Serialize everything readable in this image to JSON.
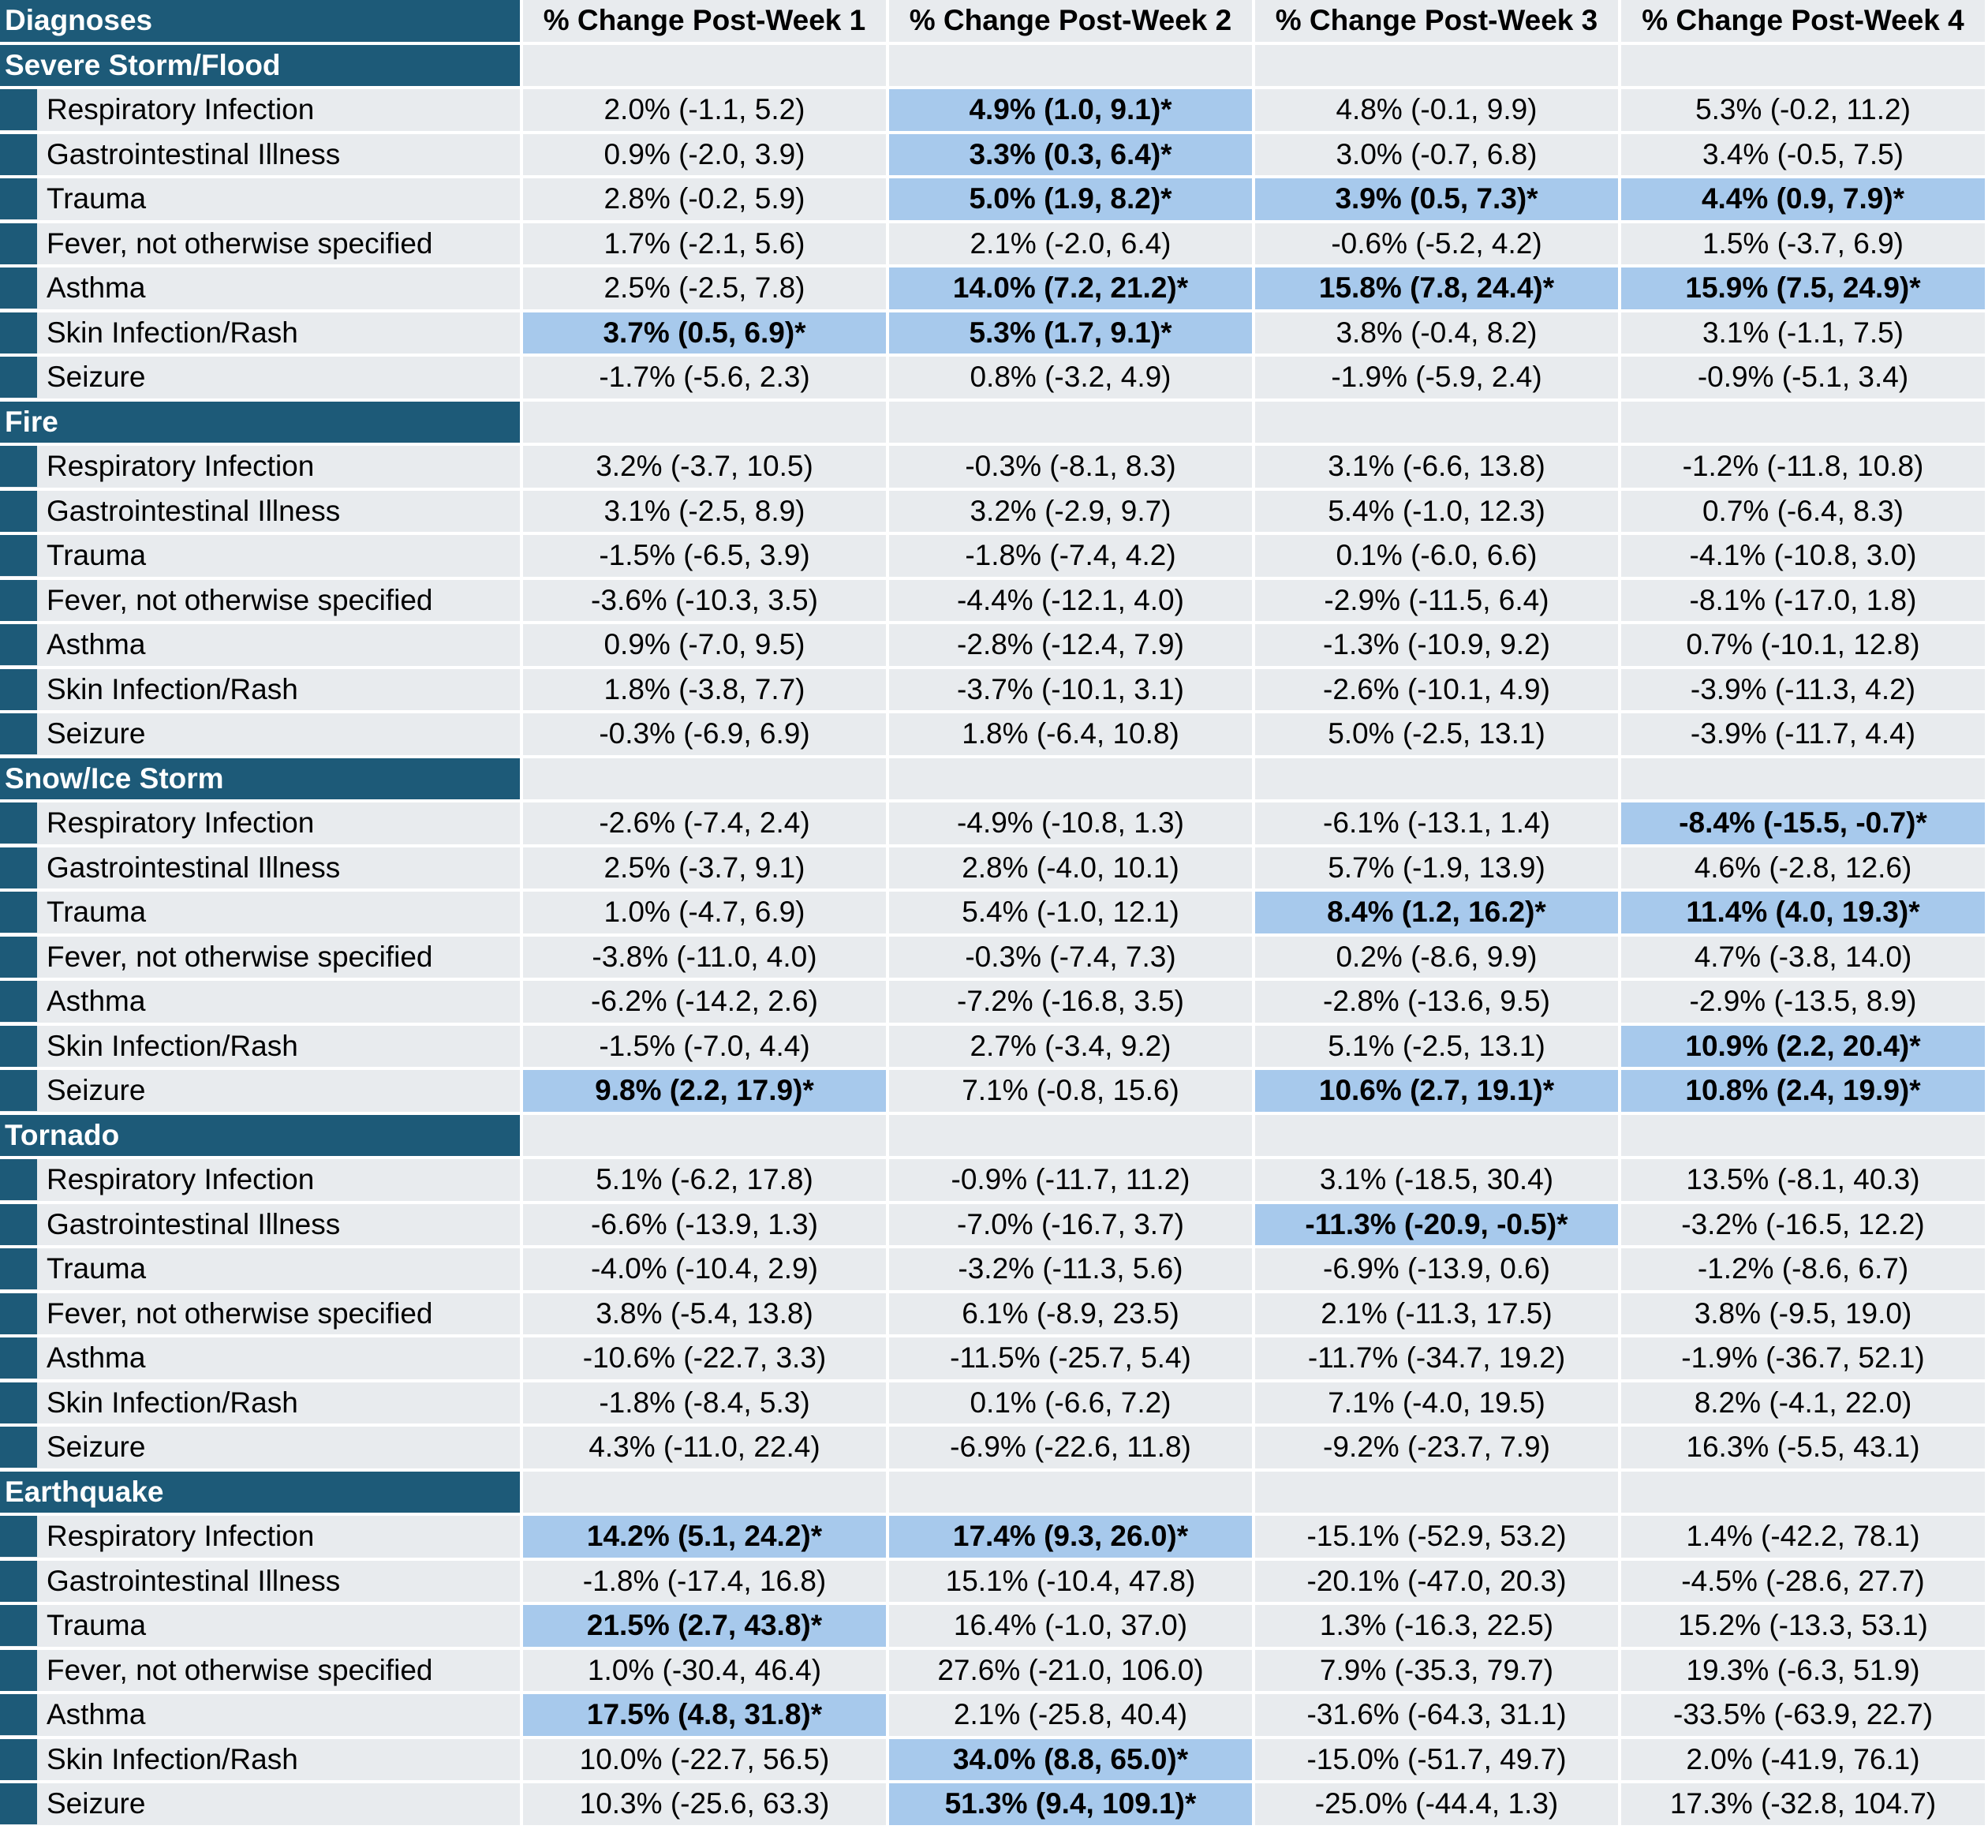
{
  "header": {
    "diagnoses": "Diagnoses",
    "weeks": [
      "% Change Post-Week 1",
      "% Change Post-Week 2",
      "% Change Post-Week 3",
      "% Change Post-Week 4"
    ]
  },
  "colors": {
    "category_bg": "#1d5a78",
    "cell_bg": "#e8ebee",
    "significant_bg": "#a7c9ec"
  },
  "categories": [
    {
      "name": "Severe Storm/Flood",
      "rows": [
        {
          "label": "Respiratory Infection",
          "cells": [
            {
              "text": "2.0% (-1.1, 5.2)",
              "sig": false
            },
            {
              "text": "4.9% (1.0, 9.1)*",
              "sig": true
            },
            {
              "text": "4.8% (-0.1, 9.9)",
              "sig": false
            },
            {
              "text": "5.3% (-0.2, 11.2)",
              "sig": false
            }
          ]
        },
        {
          "label": "Gastrointestinal Illness",
          "cells": [
            {
              "text": "0.9% (-2.0, 3.9)",
              "sig": false
            },
            {
              "text": "3.3% (0.3, 6.4)*",
              "sig": true
            },
            {
              "text": "3.0% (-0.7, 6.8)",
              "sig": false
            },
            {
              "text": "3.4% (-0.5, 7.5)",
              "sig": false
            }
          ]
        },
        {
          "label": "Trauma",
          "cells": [
            {
              "text": "2.8% (-0.2, 5.9)",
              "sig": false
            },
            {
              "text": "5.0% (1.9, 8.2)*",
              "sig": true
            },
            {
              "text": "3.9% (0.5, 7.3)*",
              "sig": true
            },
            {
              "text": "4.4% (0.9, 7.9)*",
              "sig": true
            }
          ]
        },
        {
          "label": "Fever, not otherwise specified",
          "cells": [
            {
              "text": "1.7% (-2.1, 5.6)",
              "sig": false
            },
            {
              "text": "2.1% (-2.0, 6.4)",
              "sig": false
            },
            {
              "text": "-0.6% (-5.2, 4.2)",
              "sig": false
            },
            {
              "text": "1.5% (-3.7, 6.9)",
              "sig": false
            }
          ]
        },
        {
          "label": "Asthma",
          "cells": [
            {
              "text": "2.5% (-2.5, 7.8)",
              "sig": false
            },
            {
              "text": "14.0% (7.2, 21.2)*",
              "sig": true
            },
            {
              "text": "15.8% (7.8, 24.4)*",
              "sig": true
            },
            {
              "text": "15.9% (7.5, 24.9)*",
              "sig": true
            }
          ]
        },
        {
          "label": "Skin Infection/Rash",
          "cells": [
            {
              "text": "3.7% (0.5, 6.9)*",
              "sig": true
            },
            {
              "text": "5.3% (1.7, 9.1)*",
              "sig": true
            },
            {
              "text": "3.8% (-0.4, 8.2)",
              "sig": false
            },
            {
              "text": "3.1% (-1.1, 7.5)",
              "sig": false
            }
          ]
        },
        {
          "label": "Seizure",
          "cells": [
            {
              "text": "-1.7% (-5.6, 2.3)",
              "sig": false
            },
            {
              "text": "0.8% (-3.2, 4.9)",
              "sig": false
            },
            {
              "text": "-1.9% (-5.9, 2.4)",
              "sig": false
            },
            {
              "text": "-0.9% (-5.1, 3.4)",
              "sig": false
            }
          ]
        }
      ]
    },
    {
      "name": "Fire",
      "rows": [
        {
          "label": "Respiratory Infection",
          "cells": [
            {
              "text": "3.2% (-3.7, 10.5)",
              "sig": false
            },
            {
              "text": "-0.3% (-8.1, 8.3)",
              "sig": false
            },
            {
              "text": "3.1% (-6.6, 13.8)",
              "sig": false
            },
            {
              "text": "-1.2% (-11.8, 10.8)",
              "sig": false
            }
          ]
        },
        {
          "label": "Gastrointestinal Illness",
          "cells": [
            {
              "text": "3.1% (-2.5, 8.9)",
              "sig": false
            },
            {
              "text": "3.2% (-2.9, 9.7)",
              "sig": false
            },
            {
              "text": "5.4% (-1.0, 12.3)",
              "sig": false
            },
            {
              "text": "0.7% (-6.4, 8.3)",
              "sig": false
            }
          ]
        },
        {
          "label": "Trauma",
          "cells": [
            {
              "text": "-1.5% (-6.5, 3.9)",
              "sig": false
            },
            {
              "text": "-1.8% (-7.4, 4.2)",
              "sig": false
            },
            {
              "text": "0.1% (-6.0, 6.6)",
              "sig": false
            },
            {
              "text": "-4.1% (-10.8, 3.0)",
              "sig": false
            }
          ]
        },
        {
          "label": "Fever, not otherwise specified",
          "cells": [
            {
              "text": "-3.6% (-10.3, 3.5)",
              "sig": false
            },
            {
              "text": "-4.4% (-12.1, 4.0)",
              "sig": false
            },
            {
              "text": "-2.9% (-11.5, 6.4)",
              "sig": false
            },
            {
              "text": "-8.1% (-17.0, 1.8)",
              "sig": false
            }
          ]
        },
        {
          "label": "Asthma",
          "cells": [
            {
              "text": "0.9% (-7.0, 9.5)",
              "sig": false
            },
            {
              "text": "-2.8% (-12.4, 7.9)",
              "sig": false
            },
            {
              "text": "-1.3% (-10.9, 9.2)",
              "sig": false
            },
            {
              "text": "0.7% (-10.1, 12.8)",
              "sig": false
            }
          ]
        },
        {
          "label": "Skin Infection/Rash",
          "cells": [
            {
              "text": "1.8% (-3.8, 7.7)",
              "sig": false
            },
            {
              "text": "-3.7% (-10.1, 3.1)",
              "sig": false
            },
            {
              "text": "-2.6% (-10.1, 4.9)",
              "sig": false
            },
            {
              "text": "-3.9% (-11.3, 4.2)",
              "sig": false
            }
          ]
        },
        {
          "label": "Seizure",
          "cells": [
            {
              "text": "-0.3% (-6.9, 6.9)",
              "sig": false
            },
            {
              "text": "1.8% (-6.4, 10.8)",
              "sig": false
            },
            {
              "text": "5.0% (-2.5, 13.1)",
              "sig": false
            },
            {
              "text": "-3.9% (-11.7, 4.4)",
              "sig": false
            }
          ]
        }
      ]
    },
    {
      "name": "Snow/Ice Storm",
      "rows": [
        {
          "label": "Respiratory Infection",
          "cells": [
            {
              "text": "-2.6% (-7.4, 2.4)",
              "sig": false
            },
            {
              "text": "-4.9% (-10.8, 1.3)",
              "sig": false
            },
            {
              "text": "-6.1% (-13.1, 1.4)",
              "sig": false
            },
            {
              "text": "-8.4% (-15.5, -0.7)*",
              "sig": true
            }
          ]
        },
        {
          "label": "Gastrointestinal Illness",
          "cells": [
            {
              "text": "2.5% (-3.7, 9.1)",
              "sig": false
            },
            {
              "text": "2.8% (-4.0, 10.1)",
              "sig": false
            },
            {
              "text": "5.7% (-1.9, 13.9)",
              "sig": false
            },
            {
              "text": "4.6% (-2.8, 12.6)",
              "sig": false
            }
          ]
        },
        {
          "label": "Trauma",
          "cells": [
            {
              "text": "1.0% (-4.7, 6.9)",
              "sig": false
            },
            {
              "text": "5.4% (-1.0, 12.1)",
              "sig": false
            },
            {
              "text": "8.4% (1.2, 16.2)*",
              "sig": true
            },
            {
              "text": "11.4% (4.0, 19.3)*",
              "sig": true
            }
          ]
        },
        {
          "label": "Fever, not otherwise specified",
          "cells": [
            {
              "text": "-3.8% (-11.0, 4.0)",
              "sig": false
            },
            {
              "text": "-0.3% (-7.4, 7.3)",
              "sig": false
            },
            {
              "text": "0.2% (-8.6, 9.9)",
              "sig": false
            },
            {
              "text": "4.7% (-3.8, 14.0)",
              "sig": false
            }
          ]
        },
        {
          "label": "Asthma",
          "cells": [
            {
              "text": "-6.2% (-14.2, 2.6)",
              "sig": false
            },
            {
              "text": "-7.2% (-16.8, 3.5)",
              "sig": false
            },
            {
              "text": "-2.8% (-13.6, 9.5)",
              "sig": false
            },
            {
              "text": "-2.9% (-13.5, 8.9)",
              "sig": false
            }
          ]
        },
        {
          "label": "Skin Infection/Rash",
          "cells": [
            {
              "text": "-1.5% (-7.0, 4.4)",
              "sig": false
            },
            {
              "text": "2.7% (-3.4, 9.2)",
              "sig": false
            },
            {
              "text": "5.1% (-2.5, 13.1)",
              "sig": false
            },
            {
              "text": "10.9% (2.2, 20.4)*",
              "sig": true
            }
          ]
        },
        {
          "label": "Seizure",
          "cells": [
            {
              "text": "9.8% (2.2, 17.9)*",
              "sig": true
            },
            {
              "text": "7.1% (-0.8, 15.6)",
              "sig": false
            },
            {
              "text": "10.6% (2.7, 19.1)*",
              "sig": true
            },
            {
              "text": "10.8% (2.4, 19.9)*",
              "sig": true
            }
          ]
        }
      ]
    },
    {
      "name": "Tornado",
      "rows": [
        {
          "label": "Respiratory Infection",
          "cells": [
            {
              "text": "5.1% (-6.2, 17.8)",
              "sig": false
            },
            {
              "text": "-0.9% (-11.7, 11.2)",
              "sig": false
            },
            {
              "text": "3.1% (-18.5, 30.4)",
              "sig": false
            },
            {
              "text": "13.5% (-8.1, 40.3)",
              "sig": false
            }
          ]
        },
        {
          "label": "Gastrointestinal Illness",
          "cells": [
            {
              "text": "-6.6% (-13.9, 1.3)",
              "sig": false
            },
            {
              "text": "-7.0% (-16.7, 3.7)",
              "sig": false
            },
            {
              "text": "-11.3% (-20.9, -0.5)*",
              "sig": true
            },
            {
              "text": "-3.2% (-16.5, 12.2)",
              "sig": false
            }
          ]
        },
        {
          "label": "Trauma",
          "cells": [
            {
              "text": "-4.0% (-10.4, 2.9)",
              "sig": false
            },
            {
              "text": "-3.2% (-11.3, 5.6)",
              "sig": false
            },
            {
              "text": "-6.9% (-13.9, 0.6)",
              "sig": false
            },
            {
              "text": "-1.2% (-8.6, 6.7)",
              "sig": false
            }
          ]
        },
        {
          "label": "Fever, not otherwise specified",
          "cells": [
            {
              "text": "3.8% (-5.4, 13.8)",
              "sig": false
            },
            {
              "text": "6.1% (-8.9, 23.5)",
              "sig": false
            },
            {
              "text": "2.1% (-11.3, 17.5)",
              "sig": false
            },
            {
              "text": "3.8% (-9.5, 19.0)",
              "sig": false
            }
          ]
        },
        {
          "label": "Asthma",
          "cells": [
            {
              "text": "-10.6% (-22.7, 3.3)",
              "sig": false
            },
            {
              "text": "-11.5% (-25.7, 5.4)",
              "sig": false
            },
            {
              "text": "-11.7% (-34.7, 19.2)",
              "sig": false
            },
            {
              "text": "-1.9% (-36.7, 52.1)",
              "sig": false
            }
          ]
        },
        {
          "label": "Skin Infection/Rash",
          "cells": [
            {
              "text": "-1.8% (-8.4, 5.3)",
              "sig": false
            },
            {
              "text": "0.1% (-6.6, 7.2)",
              "sig": false
            },
            {
              "text": "7.1% (-4.0, 19.5)",
              "sig": false
            },
            {
              "text": "8.2% (-4.1, 22.0)",
              "sig": false
            }
          ]
        },
        {
          "label": "Seizure",
          "cells": [
            {
              "text": "4.3% (-11.0, 22.4)",
              "sig": false
            },
            {
              "text": "-6.9% (-22.6, 11.8)",
              "sig": false
            },
            {
              "text": "-9.2% (-23.7, 7.9)",
              "sig": false
            },
            {
              "text": "16.3% (-5.5, 43.1)",
              "sig": false
            }
          ]
        }
      ]
    },
    {
      "name": "Earthquake",
      "rows": [
        {
          "label": "Respiratory Infection",
          "cells": [
            {
              "text": "14.2% (5.1, 24.2)*",
              "sig": true
            },
            {
              "text": "17.4% (9.3, 26.0)*",
              "sig": true
            },
            {
              "text": "-15.1% (-52.9, 53.2)",
              "sig": false
            },
            {
              "text": "1.4% (-42.2, 78.1)",
              "sig": false
            }
          ]
        },
        {
          "label": "Gastrointestinal Illness",
          "cells": [
            {
              "text": "-1.8% (-17.4, 16.8)",
              "sig": false
            },
            {
              "text": "15.1% (-10.4, 47.8)",
              "sig": false
            },
            {
              "text": "-20.1% (-47.0, 20.3)",
              "sig": false
            },
            {
              "text": "-4.5% (-28.6, 27.7)",
              "sig": false
            }
          ]
        },
        {
          "label": "Trauma",
          "cells": [
            {
              "text": "21.5% (2.7, 43.8)*",
              "sig": true
            },
            {
              "text": "16.4% (-1.0, 37.0)",
              "sig": false
            },
            {
              "text": "1.3% (-16.3, 22.5)",
              "sig": false
            },
            {
              "text": "15.2% (-13.3, 53.1)",
              "sig": false
            }
          ]
        },
        {
          "label": "Fever, not otherwise specified",
          "cells": [
            {
              "text": "1.0% (-30.4, 46.4)",
              "sig": false
            },
            {
              "text": "27.6% (-21.0, 106.0)",
              "sig": false
            },
            {
              "text": "7.9% (-35.3, 79.7)",
              "sig": false
            },
            {
              "text": "19.3% (-6.3, 51.9)",
              "sig": false
            }
          ]
        },
        {
          "label": "Asthma",
          "cells": [
            {
              "text": "17.5% (4.8, 31.8)*",
              "sig": true
            },
            {
              "text": "2.1% (-25.8, 40.4)",
              "sig": false
            },
            {
              "text": "-31.6% (-64.3, 31.1)",
              "sig": false
            },
            {
              "text": "-33.5% (-63.9, 22.7)",
              "sig": false
            }
          ]
        },
        {
          "label": "Skin Infection/Rash",
          "cells": [
            {
              "text": "10.0% (-22.7, 56.5)",
              "sig": false
            },
            {
              "text": "34.0% (8.8, 65.0)*",
              "sig": true
            },
            {
              "text": "-15.0% (-51.7, 49.7)",
              "sig": false
            },
            {
              "text": "2.0% (-41.9, 76.1)",
              "sig": false
            }
          ]
        },
        {
          "label": "Seizure",
          "cells": [
            {
              "text": "10.3% (-25.6, 63.3)",
              "sig": false
            },
            {
              "text": "51.3% (9.4, 109.1)*",
              "sig": true
            },
            {
              "text": "-25.0% (-44.4, 1.3)",
              "sig": false
            },
            {
              "text": "17.3% (-32.8, 104.7)",
              "sig": false
            }
          ]
        }
      ]
    }
  ]
}
